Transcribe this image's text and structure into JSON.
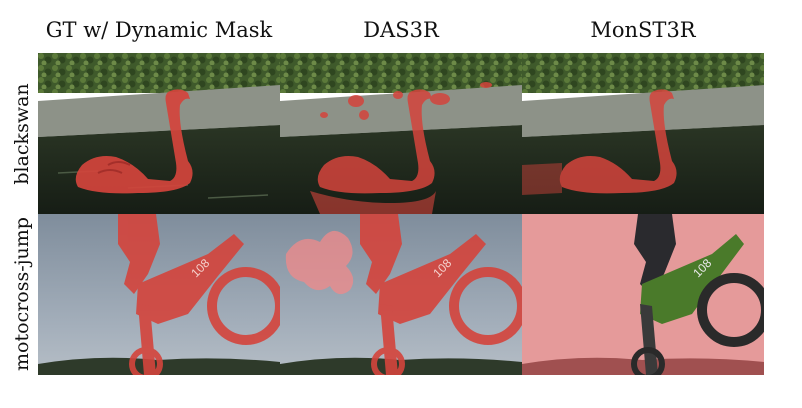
{
  "figure": {
    "columns": [
      {
        "title": "GT w/ Dynamic Mask"
      },
      {
        "title": "DAS3R"
      },
      {
        "title": "MonST3R"
      }
    ],
    "rows": [
      {
        "label": "blackswan"
      },
      {
        "label": "motocross-jump"
      }
    ],
    "colors": {
      "mask_overlay": "#e0403a",
      "foliage": "#3f5a2b",
      "water": "#1f2a1e",
      "wall": "#8d9288",
      "sky": "#8a97a6",
      "bike_green": "#4a7a2a"
    }
  }
}
